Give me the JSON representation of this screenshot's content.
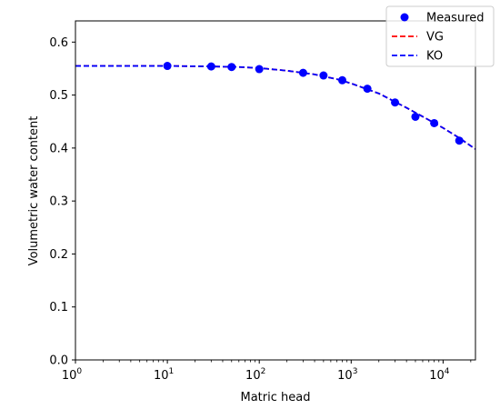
{
  "chart_data": {
    "type": "scatter",
    "xlabel": "Matric head",
    "ylabel": "Volumetric water content",
    "xscale": "log",
    "xlim": [
      1,
      22500
    ],
    "ylim": [
      0.0,
      0.64
    ],
    "x_ticks": [
      {
        "value": 1,
        "base": "10",
        "exp": "0"
      },
      {
        "value": 10,
        "base": "10",
        "exp": "1"
      },
      {
        "value": 100,
        "base": "10",
        "exp": "2"
      },
      {
        "value": 1000,
        "base": "10",
        "exp": "3"
      },
      {
        "value": 10000,
        "base": "10",
        "exp": "4"
      }
    ],
    "y_ticks": [
      {
        "value": 0.0,
        "label": "0.0"
      },
      {
        "value": 0.1,
        "label": "0.1"
      },
      {
        "value": 0.2,
        "label": "0.2"
      },
      {
        "value": 0.3,
        "label": "0.3"
      },
      {
        "value": 0.4,
        "label": "0.4"
      },
      {
        "value": 0.5,
        "label": "0.5"
      },
      {
        "value": 0.6,
        "label": "0.6"
      }
    ],
    "legend_position": "top-right",
    "series": [
      {
        "name": "Measured",
        "kind": "markers",
        "color": "#0000ff",
        "x": [
          10,
          30,
          50,
          100,
          300,
          500,
          800,
          1500,
          3000,
          5000,
          8000,
          15000
        ],
        "y": [
          0.555,
          0.554,
          0.553,
          0.549,
          0.542,
          0.537,
          0.528,
          0.512,
          0.486,
          0.459,
          0.447,
          0.414
        ]
      },
      {
        "name": "VG",
        "kind": "dashed-line",
        "color": "#ff0000",
        "x": [
          1,
          10,
          30,
          60,
          100,
          200,
          400,
          700,
          1000,
          2000,
          4000,
          7000,
          10000,
          15000,
          22500
        ],
        "y": [
          0.555,
          0.555,
          0.554,
          0.553,
          0.551,
          0.546,
          0.539,
          0.53,
          0.522,
          0.503,
          0.476,
          0.453,
          0.438,
          0.419,
          0.398
        ]
      },
      {
        "name": "KO",
        "kind": "dashed-line",
        "color": "#0000ff",
        "x": [
          1,
          10,
          30,
          60,
          100,
          200,
          400,
          700,
          1000,
          2000,
          4000,
          7000,
          10000,
          15000,
          22500
        ],
        "y": [
          0.555,
          0.555,
          0.554,
          0.553,
          0.551,
          0.546,
          0.539,
          0.53,
          0.522,
          0.503,
          0.476,
          0.453,
          0.438,
          0.419,
          0.398
        ]
      }
    ]
  }
}
